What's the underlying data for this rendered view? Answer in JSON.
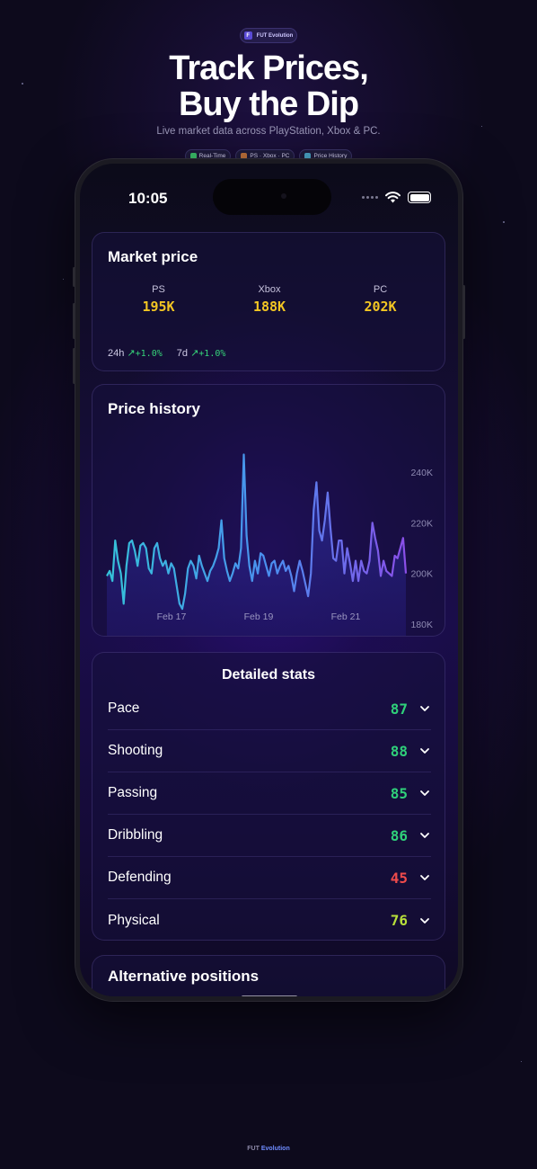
{
  "badge": {
    "logo": "F",
    "label": "FUT Evolution"
  },
  "hero": {
    "title_line1": "Track Prices,",
    "title_line2": "Buy the Dip",
    "subtitle": "Live market data across PlayStation, Xbox & PC."
  },
  "chips": [
    {
      "icon": "check-icon",
      "label": "Real-Time",
      "color": "#3cc36b"
    },
    {
      "icon": "gamepad-icon",
      "label": "PS · Xbox · PC",
      "color": "#c2733c"
    },
    {
      "icon": "chart-icon",
      "label": "Price History",
      "color": "#4aa7c9"
    }
  ],
  "status": {
    "time": "10:05"
  },
  "market_price": {
    "title": "Market price",
    "platforms": [
      {
        "label": "PS",
        "value": "195K"
      },
      {
        "label": "Xbox",
        "value": "188K"
      },
      {
        "label": "PC",
        "value": "202K"
      }
    ],
    "change_24h_label": "24h",
    "change_24h": "+1.0%",
    "change_7d_label": "7d",
    "change_7d": "+1.0%",
    "up_color": "#36d47a",
    "price_color": "#f3c623"
  },
  "price_history": {
    "title": "Price history"
  },
  "chart_data": {
    "type": "area",
    "title": "Price history",
    "xlabel": "",
    "ylabel": "",
    "x_ticks": [
      "Feb 17",
      "Feb 19",
      "Feb 21"
    ],
    "y_ticks": [
      "240K",
      "220K",
      "200K",
      "180K"
    ],
    "ylim": [
      175,
      255
    ],
    "grid": false,
    "series": [
      {
        "values": [
          199,
          201,
          197,
          213,
          205,
          200,
          188,
          203,
          212,
          213,
          209,
          203,
          211,
          212,
          210,
          202,
          200,
          210,
          212,
          206,
          203,
          205,
          200,
          204,
          202,
          195,
          188,
          186,
          192,
          202,
          205,
          203,
          198,
          207,
          203,
          200,
          197,
          201,
          203,
          206,
          210,
          221,
          206,
          201,
          197,
          200,
          204,
          202,
          210,
          247,
          215,
          203,
          197,
          205,
          200,
          208,
          207,
          203,
          199,
          204,
          205,
          200,
          203,
          205,
          201,
          203,
          199,
          193,
          200,
          205,
          201,
          196,
          191,
          200,
          225,
          236,
          217,
          213,
          221,
          232,
          218,
          206,
          205,
          213,
          213,
          200,
          210,
          204,
          197,
          205,
          197,
          205,
          201,
          200,
          205,
          220,
          214,
          209,
          199,
          205,
          201,
          200,
          199,
          207,
          206,
          210,
          214,
          200
        ]
      }
    ]
  },
  "detailed_stats": {
    "title": "Detailed stats",
    "rows": [
      {
        "name": "Pace",
        "value": "87",
        "color": "#2fd07a"
      },
      {
        "name": "Shooting",
        "value": "88",
        "color": "#2fd07a"
      },
      {
        "name": "Passing",
        "value": "85",
        "color": "#2fd07a"
      },
      {
        "name": "Dribbling",
        "value": "86",
        "color": "#2fd07a"
      },
      {
        "name": "Defending",
        "value": "45",
        "color": "#ef4b4b"
      },
      {
        "name": "Physical",
        "value": "76",
        "color": "#b8e03a"
      }
    ]
  },
  "alternative_positions": {
    "title": "Alternative positions"
  },
  "footer": {
    "brand_1": "FUT",
    "brand_2": "Evolution"
  }
}
